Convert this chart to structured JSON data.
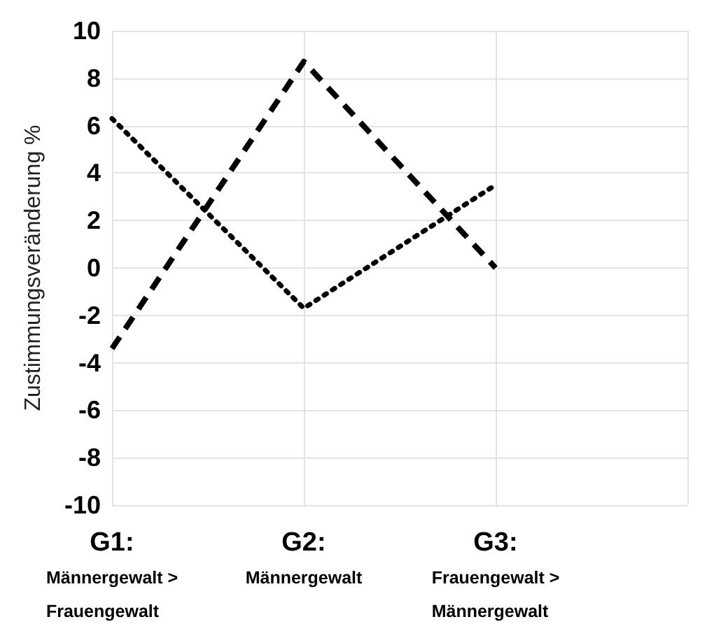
{
  "chart_data": {
    "type": "line",
    "ylabel": "Zustimmungsveränderung %",
    "categories": [
      "G1:\nMännergewalt >\nFrauengewalt",
      "G2:\nMännergewalt",
      "G3:\nFrauengewalt >\nMännergewalt"
    ],
    "series": [
      {
        "color": "#000000",
        "line_style": "dashed",
        "values": [
          -3.4,
          8.7,
          0.0
        ]
      },
      {
        "color": "#000000",
        "line_style": "dotted",
        "values": [
          6.3,
          -1.7,
          3.5
        ]
      }
    ],
    "ylim": [
      -10,
      10
    ],
    "yticks": [
      -10,
      -8,
      -6,
      -4,
      -2,
      0,
      2,
      4,
      6,
      8,
      10
    ],
    "grid": true,
    "marker": "none"
  }
}
